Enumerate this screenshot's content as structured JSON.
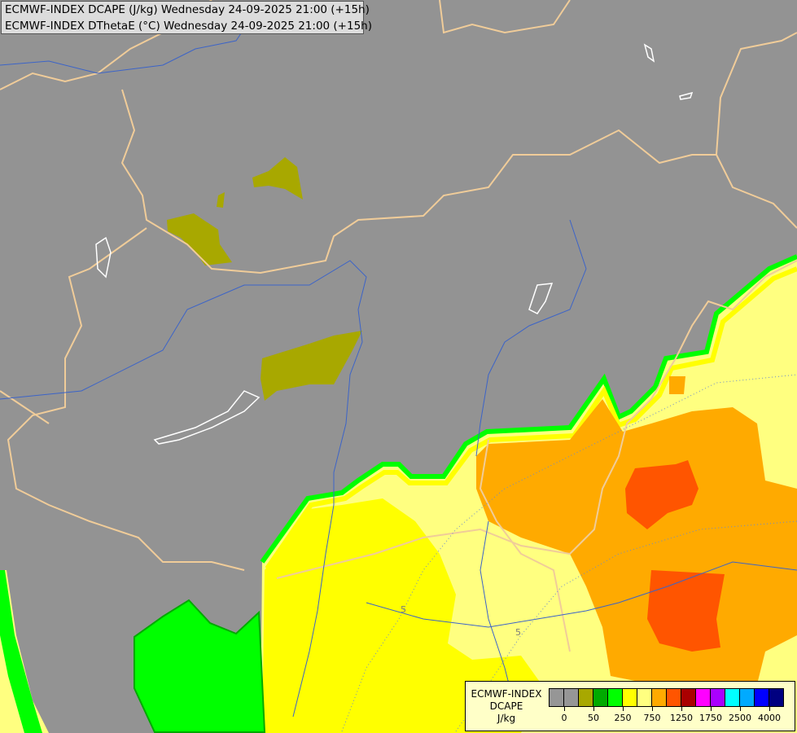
{
  "title": {
    "line1": "ECMWF-INDEX DCAPE (J/kg) Wednesday 24-09-2025 21:00 (+15h)",
    "line2": "ECMWF-INDEX DThetaE (°C) Wednesday 24-09-2025 21:00 (+15h)"
  },
  "legend": {
    "label_lines": [
      "ECMWF-INDEX",
      "DCAPE",
      "J/kg"
    ],
    "colors": [
      "#969696",
      "#969696",
      "#a8a800",
      "#00aa00",
      "#00ff00",
      "#ffff00",
      "#ffff80",
      "#ffaa00",
      "#ff5500",
      "#aa0000",
      "#ff00ff",
      "#aa00ff",
      "#00ffff",
      "#00aaff",
      "#0000ff",
      "#000080"
    ],
    "ticks": [
      "0",
      "50",
      "250",
      "750",
      "1250",
      "1750",
      "2500",
      "4000"
    ]
  },
  "contour_labels": [
    "5",
    "5"
  ],
  "colors": {
    "background": "#939393",
    "border": "#f0cc99",
    "river": "#3c64c8",
    "lake": "#ffffff"
  }
}
